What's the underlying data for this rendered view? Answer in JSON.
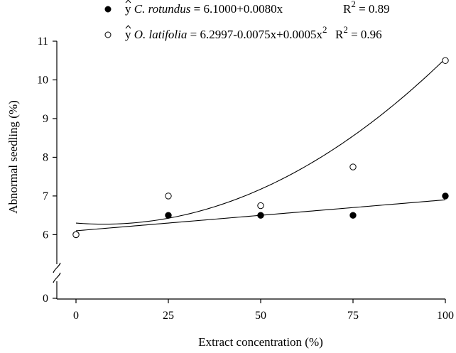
{
  "chart_data": {
    "type": "scatter",
    "xlabel": "Extract concentration (%)",
    "ylabel": "Abnormal seedling (%)",
    "x_ticks": [
      "0",
      "25",
      "50",
      "75",
      "100"
    ],
    "y_ticks": [
      "6",
      "7",
      "8",
      "9",
      "10",
      "11"
    ],
    "y_break_tick": "0",
    "xlim": [
      0,
      100
    ],
    "ylim": [
      5.75,
      11
    ],
    "axis_break": true,
    "grid": false,
    "legend_position": "top",
    "series": [
      {
        "name": "C. rotundus",
        "marker": "filled-circle",
        "x": [
          0,
          25,
          50,
          75,
          100
        ],
        "y": [
          6.0,
          6.5,
          6.5,
          6.5,
          7.0
        ],
        "fit": {
          "type": "linear",
          "a": 6.1,
          "b": 0.008
        },
        "legend": {
          "yhat": "y",
          "species": "C. rotundus",
          "equation": " = 6.1000+0.0080x",
          "r2_label": "R",
          "r2_exp": "2",
          "r2_value": " = 0.89"
        }
      },
      {
        "name": "O. latifolia",
        "marker": "open-circle",
        "x": [
          0,
          25,
          50,
          75,
          100
        ],
        "y": [
          6.0,
          7.0,
          6.75,
          7.75,
          10.5
        ],
        "fit": {
          "type": "quadratic",
          "a": 6.2997,
          "b": -0.0075,
          "c": 0.0005
        },
        "legend": {
          "yhat": "y",
          "species": "O. latifolia",
          "equation": " = 6.2997-0.0075x+0.0005x",
          "eq_exp": "2",
          "r2_label": "R",
          "r2_exp": "2",
          "r2_value": " = 0.96"
        }
      }
    ]
  },
  "colors": {
    "ink": "#000000",
    "background": "#ffffff"
  }
}
